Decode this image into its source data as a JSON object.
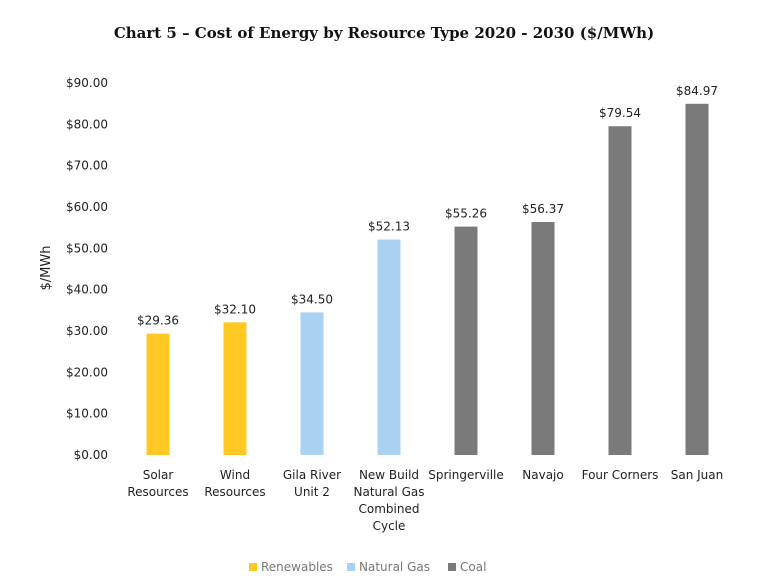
{
  "chart_data": {
    "type": "bar",
    "title": "Chart 5 – Cost of Energy by Resource Type 2020 - 2030 ($/MWh)",
    "xlabel": "",
    "ylabel": "$/MWh",
    "ylim": [
      0,
      90
    ],
    "yticks": [
      "$0.00",
      "$10.00",
      "$20.00",
      "$30.00",
      "$40.00",
      "$50.00",
      "$60.00",
      "$70.00",
      "$80.00",
      "$90.00"
    ],
    "ytick_values": [
      0,
      10,
      20,
      30,
      40,
      50,
      60,
      70,
      80,
      90
    ],
    "grid": false,
    "legend_position": "bottom",
    "legend": [
      {
        "name": "Renewables",
        "color": "#FFC825"
      },
      {
        "name": "Natural Gas",
        "color": "#A9D2F2"
      },
      {
        "name": "Coal",
        "color": "#7A7A7A"
      }
    ],
    "bars": [
      {
        "category": [
          "Solar",
          "Resources"
        ],
        "value": 29.36,
        "label": "$29.36",
        "group": "Renewables"
      },
      {
        "category": [
          "Wind",
          "Resources"
        ],
        "value": 32.1,
        "label": "$32.10",
        "group": "Renewables"
      },
      {
        "category": [
          "Gila River",
          "Unit 2"
        ],
        "value": 34.5,
        "label": "$34.50",
        "group": "Natural Gas"
      },
      {
        "category": [
          "New Build",
          "Natural Gas",
          "Combined",
          "Cycle"
        ],
        "value": 52.13,
        "label": "$52.13",
        "group": "Natural Gas"
      },
      {
        "category": [
          "Springerville"
        ],
        "value": 55.26,
        "label": "$55.26",
        "group": "Coal"
      },
      {
        "category": [
          "Navajo"
        ],
        "value": 56.37,
        "label": "$56.37",
        "group": "Coal"
      },
      {
        "category": [
          "Four Corners"
        ],
        "value": 79.54,
        "label": "$79.54",
        "group": "Coal"
      },
      {
        "category": [
          "San Juan"
        ],
        "value": 84.97,
        "label": "$84.97",
        "group": "Coal"
      }
    ]
  }
}
